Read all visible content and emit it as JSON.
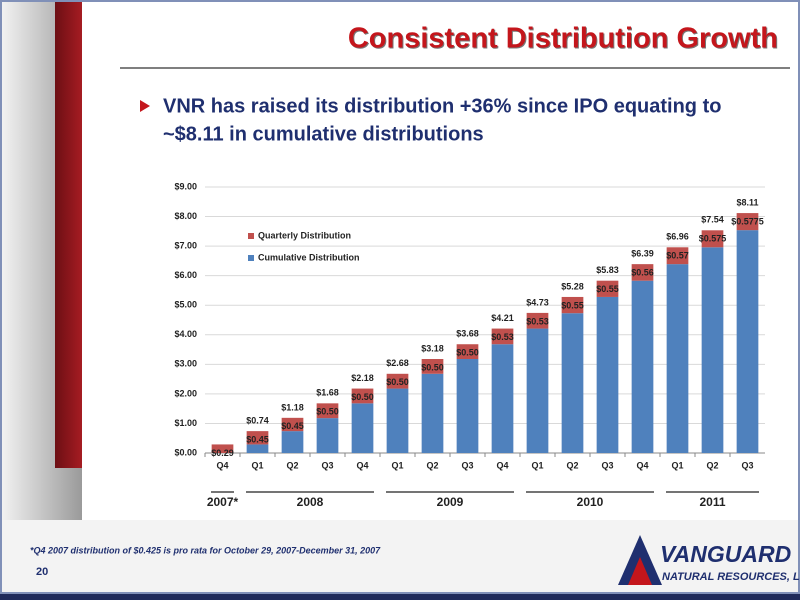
{
  "slide": {
    "title": "Consistent Distribution Growth",
    "bullet": [
      "VNR has raised its distribution +36% since IPO equating to",
      "~$8.11 in cumulative distributions"
    ],
    "footnote": "*Q4 2007 distribution of $0.425 is pro rata for October 29, 2007-December 31, 2007",
    "page_number": "20",
    "logo": [
      "VANGUARD",
      "NATURAL RESOURCES, LLC"
    ]
  },
  "chart_data": {
    "type": "stacked_bar",
    "categories": [
      "Q4",
      "Q1",
      "Q2",
      "Q3",
      "Q4",
      "Q1",
      "Q2",
      "Q3",
      "Q4",
      "Q1",
      "Q2",
      "Q3",
      "Q4",
      "Q1",
      "Q2",
      "Q3"
    ],
    "year_groups": [
      "2007*",
      "2008",
      "2009",
      "2010",
      "2011"
    ],
    "series": [
      {
        "name": "Cumulative Distribution",
        "color": "#4f81bd",
        "values": [
          0,
          0.29,
          0.74,
          1.18,
          1.68,
          2.18,
          2.68,
          3.18,
          3.68,
          4.21,
          4.73,
          5.28,
          5.83,
          6.39,
          6.96,
          7.54
        ]
      },
      {
        "name": "Quarterly Distribution",
        "color": "#c0504d",
        "values": [
          0.29,
          0.45,
          0.45,
          0.5,
          0.5,
          0.5,
          0.5,
          0.5,
          0.53,
          0.53,
          0.55,
          0.55,
          0.56,
          0.57,
          0.575,
          0.5775
        ],
        "value_labels": [
          "$0.29",
          "$0.45",
          "$0.45",
          "$0.50",
          "$0.50",
          "$0.50",
          "$0.50",
          "$0.50",
          "$0.53",
          "$0.53",
          "$0.55",
          "$0.55",
          "$0.56",
          "$0.57",
          "$0.575",
          "$0.5775"
        ]
      }
    ],
    "totals": [
      null,
      0.74,
      1.18,
      1.68,
      2.18,
      2.68,
      3.18,
      3.68,
      4.21,
      4.73,
      5.28,
      5.83,
      6.39,
      6.96,
      7.54,
      8.11
    ],
    "total_labels": [
      null,
      "$0.74",
      "$1.18",
      "$1.68",
      "$2.18",
      "$2.68",
      "$3.18",
      "$3.68",
      "$4.21",
      "$4.73",
      "$5.28",
      "$5.83",
      "$6.39",
      "$6.96",
      "$7.54",
      "$8.11"
    ],
    "ylim": [
      0,
      9
    ],
    "yticks": [
      {
        "value": 0,
        "label": "$0.00"
      },
      {
        "value": 1,
        "label": "$1.00"
      },
      {
        "value": 2,
        "label": "$2.00"
      },
      {
        "value": 3,
        "label": "$3.00"
      },
      {
        "value": 4,
        "label": "$4.00"
      },
      {
        "value": 5,
        "label": "$5.00"
      },
      {
        "value": 6,
        "label": "$6.00"
      },
      {
        "value": 7,
        "label": "$7.00"
      },
      {
        "value": 8,
        "label": "$8.00"
      },
      {
        "value": 9,
        "label": "$9.00"
      }
    ],
    "grid": true,
    "legend": "upper-left"
  }
}
